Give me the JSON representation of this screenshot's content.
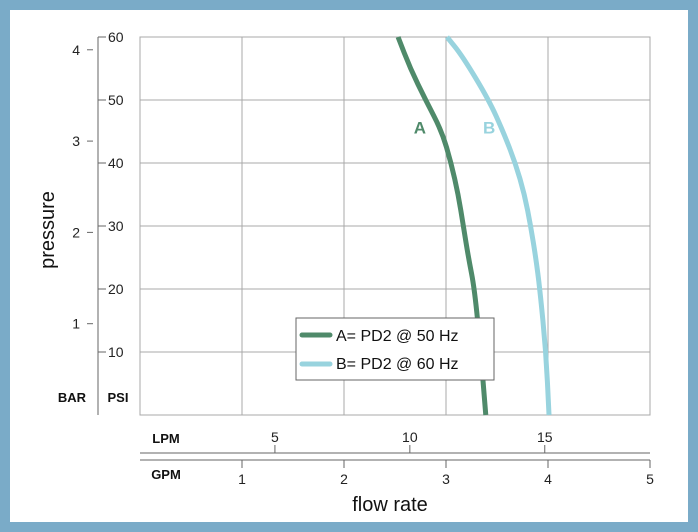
{
  "colors": {
    "frame": "#7aabc8",
    "grid": "#a8a8a8",
    "series_a": "#4f8a6a",
    "series_b": "#98d3de",
    "text": "#111111"
  },
  "chart_data": {
    "type": "line",
    "ylabel": "pressure",
    "xlabel": "flow rate",
    "grid": true,
    "legend_position": "bottom-center",
    "xaxis_lpm": {
      "label": "LPM",
      "ticks": [
        "5",
        "10",
        "15"
      ],
      "range": [
        0,
        18.9
      ]
    },
    "xaxis_gpm": {
      "label": "GPM",
      "ticks": [
        "1",
        "2",
        "3",
        "4",
        "5"
      ],
      "range": [
        0,
        5
      ]
    },
    "yaxis_psi": {
      "label": "PSI",
      "ticks": [
        "10",
        "20",
        "30",
        "40",
        "50",
        "60"
      ],
      "range": [
        0,
        60
      ]
    },
    "yaxis_bar": {
      "label": "BAR",
      "ticks": [
        "1",
        "2",
        "3",
        "4"
      ],
      "range": [
        0,
        4.14
      ]
    },
    "series": [
      {
        "name": "A= PD2 @ 50 Hz",
        "curve_label": "A",
        "x_gpm": [
          2.53,
          2.65,
          2.8,
          2.96,
          3.05,
          3.12,
          3.17,
          3.22,
          3.28,
          3.34,
          3.39
        ],
        "y_psi": [
          60,
          55,
          50,
          45,
          40,
          35,
          30,
          25,
          20,
          10,
          0
        ]
      },
      {
        "name": "B= PD2 @ 60 Hz",
        "curve_label": "B",
        "x_gpm": [
          3.01,
          3.16,
          3.42,
          3.56,
          3.68,
          3.77,
          3.83,
          3.88,
          3.92,
          3.98,
          4.01
        ],
        "y_psi": [
          60,
          57,
          50,
          45,
          40,
          35,
          30,
          25,
          20,
          10,
          0
        ]
      }
    ]
  }
}
